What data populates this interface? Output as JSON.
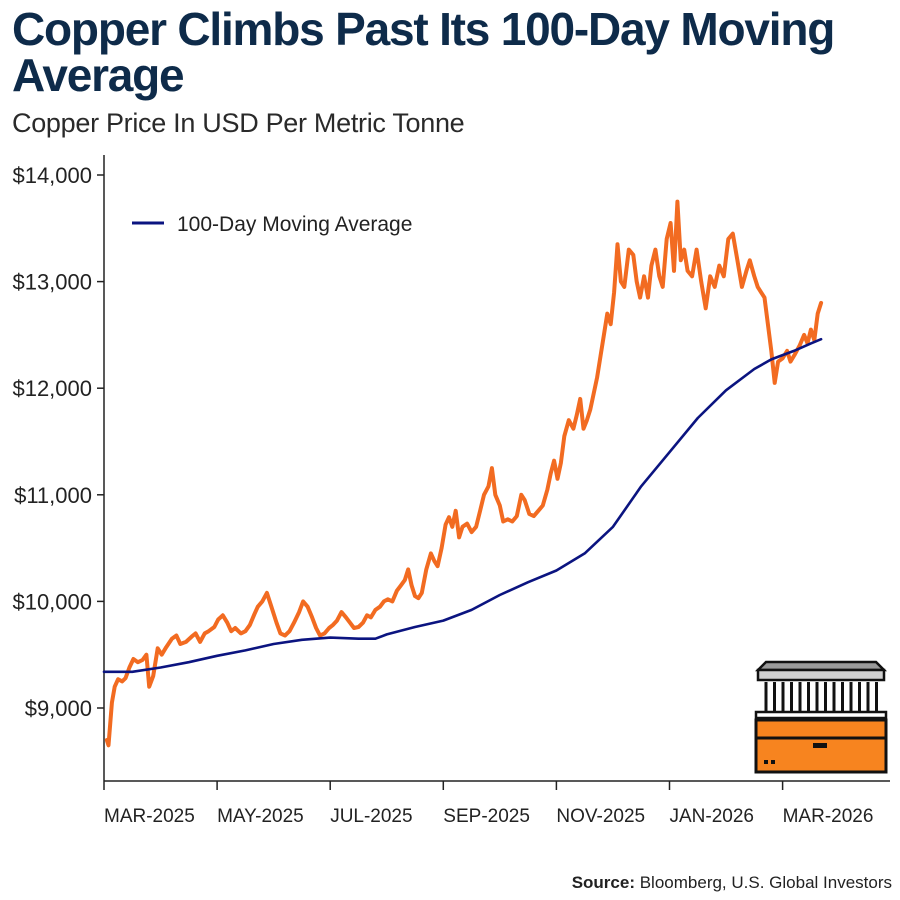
{
  "colors": {
    "title": "#0e2b4a",
    "price_line": "#f26b21",
    "moving_average_line": "#0b1480",
    "axis": "#222222",
    "logo_fill": "#f7841f",
    "logo_outline": "#111111",
    "logo_roof": "#9a9a9a"
  },
  "header": {
    "title": "Copper Climbs Past Its 100-Day Moving Average",
    "subtitle": "Copper Price In USD Per Metric Tonne"
  },
  "legend": {
    "label": "100-Day Moving Average"
  },
  "footer": {
    "source_label": "Source:",
    "source_text": "Bloomberg, U.S. Global Investors"
  },
  "logo": {
    "icon": "building-on-gold-bar-icon"
  },
  "chart_data": {
    "type": "line",
    "title": "Copper Climbs Past Its 100-Day Moving Average",
    "subtitle": "Copper Price In USD Per Metric Tonne",
    "xlabel": "",
    "ylabel": "",
    "x_range": [
      0,
      13.9
    ],
    "ylim": [
      8300,
      14300
    ],
    "y_ticks": [
      9000,
      10000,
      11000,
      12000,
      13000,
      14000
    ],
    "y_tick_labels": [
      "$9,000",
      "$10,000",
      "$11,000",
      "$12,000",
      "$13,000",
      "$14,000"
    ],
    "x_ticks": [
      0,
      2,
      4,
      6,
      8,
      10,
      12
    ],
    "x_tick_labels": [
      "MAR-2025",
      "MAY-2025",
      "JUL-2025",
      "SEP-2025",
      "NOV-2025",
      "JAN-2026",
      "MAR-2026"
    ],
    "x_unit": "months since Mar 1, 2025",
    "grid": false,
    "legend_position": "top-left",
    "series": [
      {
        "name": "Copper Price",
        "show_in_legend": false,
        "points": [
          [
            0.05,
            8700
          ],
          [
            0.08,
            8650
          ],
          [
            0.14,
            9050
          ],
          [
            0.19,
            9200
          ],
          [
            0.25,
            9270
          ],
          [
            0.32,
            9250
          ],
          [
            0.38,
            9280
          ],
          [
            0.45,
            9380
          ],
          [
            0.52,
            9460
          ],
          [
            0.6,
            9430
          ],
          [
            0.68,
            9450
          ],
          [
            0.75,
            9500
          ],
          [
            0.8,
            9200
          ],
          [
            0.87,
            9300
          ],
          [
            0.95,
            9560
          ],
          [
            1.02,
            9500
          ],
          [
            1.1,
            9570
          ],
          [
            1.2,
            9650
          ],
          [
            1.28,
            9680
          ],
          [
            1.35,
            9600
          ],
          [
            1.45,
            9620
          ],
          [
            1.55,
            9670
          ],
          [
            1.62,
            9700
          ],
          [
            1.7,
            9620
          ],
          [
            1.78,
            9700
          ],
          [
            1.85,
            9720
          ],
          [
            1.95,
            9760
          ],
          [
            2.02,
            9830
          ],
          [
            2.1,
            9870
          ],
          [
            2.18,
            9800
          ],
          [
            2.25,
            9720
          ],
          [
            2.32,
            9750
          ],
          [
            2.42,
            9700
          ],
          [
            2.5,
            9720
          ],
          [
            2.58,
            9780
          ],
          [
            2.66,
            9880
          ],
          [
            2.72,
            9950
          ],
          [
            2.8,
            10000
          ],
          [
            2.88,
            10080
          ],
          [
            2.96,
            9950
          ],
          [
            3.05,
            9800
          ],
          [
            3.12,
            9700
          ],
          [
            3.2,
            9680
          ],
          [
            3.28,
            9720
          ],
          [
            3.36,
            9800
          ],
          [
            3.45,
            9900
          ],
          [
            3.52,
            10000
          ],
          [
            3.6,
            9950
          ],
          [
            3.68,
            9850
          ],
          [
            3.75,
            9750
          ],
          [
            3.82,
            9680
          ],
          [
            3.9,
            9700
          ],
          [
            3.98,
            9750
          ],
          [
            4.05,
            9780
          ],
          [
            4.12,
            9820
          ],
          [
            4.2,
            9900
          ],
          [
            4.28,
            9850
          ],
          [
            4.35,
            9800
          ],
          [
            4.42,
            9750
          ],
          [
            4.5,
            9760
          ],
          [
            4.58,
            9800
          ],
          [
            4.65,
            9870
          ],
          [
            4.72,
            9850
          ],
          [
            4.8,
            9920
          ],
          [
            4.88,
            9950
          ],
          [
            4.95,
            10000
          ],
          [
            5.02,
            10020
          ],
          [
            5.1,
            10000
          ],
          [
            5.18,
            10100
          ],
          [
            5.25,
            10150
          ],
          [
            5.32,
            10200
          ],
          [
            5.38,
            10300
          ],
          [
            5.44,
            10150
          ],
          [
            5.5,
            10050
          ],
          [
            5.56,
            10030
          ],
          [
            5.62,
            10080
          ],
          [
            5.7,
            10300
          ],
          [
            5.78,
            10450
          ],
          [
            5.84,
            10380
          ],
          [
            5.9,
            10330
          ],
          [
            5.97,
            10500
          ],
          [
            6.04,
            10720
          ],
          [
            6.1,
            10790
          ],
          [
            6.16,
            10700
          ],
          [
            6.22,
            10850
          ],
          [
            6.28,
            10600
          ],
          [
            6.34,
            10700
          ],
          [
            6.42,
            10730
          ],
          [
            6.5,
            10650
          ],
          [
            6.58,
            10700
          ],
          [
            6.65,
            10850
          ],
          [
            6.72,
            11000
          ],
          [
            6.8,
            11080
          ],
          [
            6.86,
            11250
          ],
          [
            6.92,
            11000
          ],
          [
            7.0,
            10900
          ],
          [
            7.06,
            10750
          ],
          [
            7.14,
            10770
          ],
          [
            7.22,
            10750
          ],
          [
            7.3,
            10800
          ],
          [
            7.38,
            11000
          ],
          [
            7.44,
            10950
          ],
          [
            7.52,
            10820
          ],
          [
            7.6,
            10800
          ],
          [
            7.68,
            10850
          ],
          [
            7.76,
            10900
          ],
          [
            7.84,
            11050
          ],
          [
            7.9,
            11200
          ],
          [
            7.96,
            11320
          ],
          [
            8.02,
            11150
          ],
          [
            8.08,
            11300
          ],
          [
            8.14,
            11550
          ],
          [
            8.22,
            11700
          ],
          [
            8.3,
            11620
          ],
          [
            8.36,
            11750
          ],
          [
            8.42,
            11900
          ],
          [
            8.48,
            11620
          ],
          [
            8.54,
            11700
          ],
          [
            8.6,
            11800
          ],
          [
            8.66,
            11950
          ],
          [
            8.72,
            12100
          ],
          [
            8.78,
            12300
          ],
          [
            8.84,
            12500
          ],
          [
            8.9,
            12700
          ],
          [
            8.96,
            12600
          ],
          [
            9.02,
            12900
          ],
          [
            9.08,
            13350
          ],
          [
            9.14,
            13000
          ],
          [
            9.2,
            12950
          ],
          [
            9.28,
            13300
          ],
          [
            9.36,
            13250
          ],
          [
            9.42,
            13000
          ],
          [
            9.48,
            12850
          ],
          [
            9.55,
            13050
          ],
          [
            9.62,
            12850
          ],
          [
            9.68,
            13150
          ],
          [
            9.75,
            13300
          ],
          [
            9.82,
            13050
          ],
          [
            9.88,
            12950
          ],
          [
            9.95,
            13400
          ],
          [
            10.02,
            13550
          ],
          [
            10.08,
            13100
          ],
          [
            10.14,
            13750
          ],
          [
            10.2,
            13200
          ],
          [
            10.26,
            13300
          ],
          [
            10.32,
            13100
          ],
          [
            10.4,
            13050
          ],
          [
            10.48,
            13300
          ],
          [
            10.56,
            13000
          ],
          [
            10.64,
            12750
          ],
          [
            10.72,
            13050
          ],
          [
            10.8,
            12950
          ],
          [
            10.88,
            13150
          ],
          [
            10.96,
            13050
          ],
          [
            11.04,
            13400
          ],
          [
            11.12,
            13450
          ],
          [
            11.2,
            13200
          ],
          [
            11.28,
            12950
          ],
          [
            11.36,
            13100
          ],
          [
            11.42,
            13200
          ],
          [
            11.5,
            13050
          ],
          [
            11.56,
            12950
          ],
          [
            11.62,
            12900
          ],
          [
            11.68,
            12850
          ],
          [
            11.74,
            12600
          ],
          [
            11.8,
            12350
          ],
          [
            11.86,
            12050
          ],
          [
            11.92,
            12250
          ],
          [
            12.0,
            12280
          ],
          [
            12.08,
            12350
          ],
          [
            12.14,
            12250
          ],
          [
            12.22,
            12320
          ],
          [
            12.3,
            12400
          ],
          [
            12.38,
            12500
          ],
          [
            12.44,
            12420
          ],
          [
            12.5,
            12550
          ],
          [
            12.56,
            12450
          ],
          [
            12.62,
            12700
          ],
          [
            12.68,
            12800
          ]
        ]
      },
      {
        "name": "100-Day Moving Average",
        "show_in_legend": true,
        "points": [
          [
            0.0,
            9340
          ],
          [
            0.5,
            9340
          ],
          [
            1.0,
            9380
          ],
          [
            1.5,
            9430
          ],
          [
            2.0,
            9490
          ],
          [
            2.5,
            9540
          ],
          [
            3.0,
            9600
          ],
          [
            3.5,
            9640
          ],
          [
            4.0,
            9660
          ],
          [
            4.5,
            9650
          ],
          [
            4.8,
            9650
          ],
          [
            5.0,
            9690
          ],
          [
            5.5,
            9760
          ],
          [
            6.0,
            9820
          ],
          [
            6.5,
            9920
          ],
          [
            7.0,
            10060
          ],
          [
            7.5,
            10180
          ],
          [
            8.0,
            10290
          ],
          [
            8.5,
            10450
          ],
          [
            9.0,
            10700
          ],
          [
            9.5,
            11080
          ],
          [
            10.0,
            11400
          ],
          [
            10.5,
            11720
          ],
          [
            11.0,
            11980
          ],
          [
            11.5,
            12180
          ],
          [
            11.8,
            12270
          ],
          [
            12.2,
            12350
          ],
          [
            12.5,
            12420
          ],
          [
            12.68,
            12460
          ]
        ]
      }
    ]
  }
}
